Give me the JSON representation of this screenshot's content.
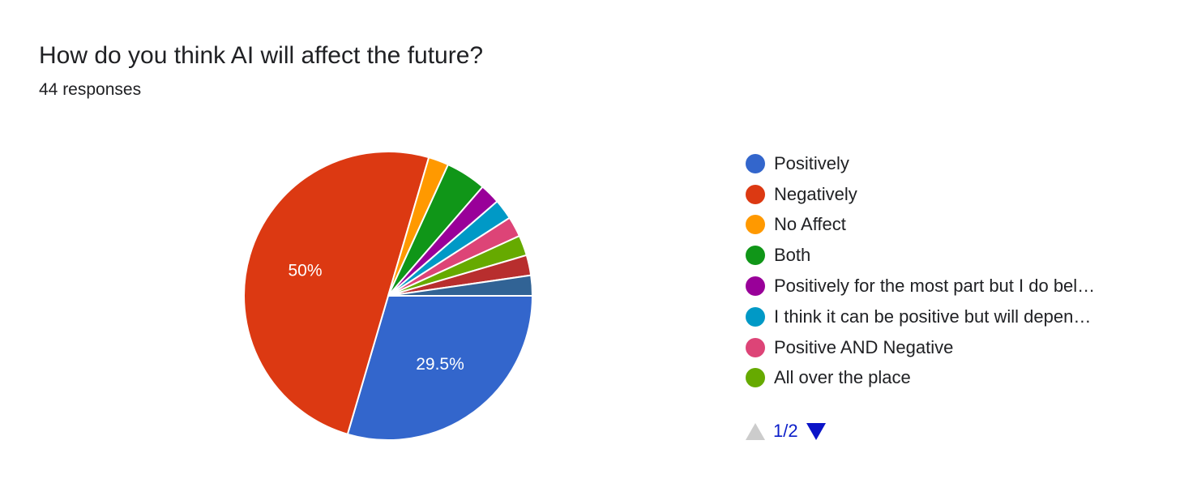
{
  "header": {
    "title": "How do you think AI will affect the future?",
    "responses": "44 responses"
  },
  "chart_data": {
    "type": "pie",
    "slices": [
      {
        "label": "Positively",
        "value": 13,
        "percent_label": "29.5%",
        "color": "#3366cc"
      },
      {
        "label": "Negatively",
        "value": 22,
        "percent_label": "50%",
        "color": "#dc3912"
      },
      {
        "label": "No Affect",
        "value": 1,
        "percent_label": "",
        "color": "#ff9900"
      },
      {
        "label": "Both",
        "value": 2,
        "percent_label": "",
        "color": "#109618"
      },
      {
        "label": "Positively for the most part but I do bel…",
        "value": 1,
        "percent_label": "",
        "color": "#990099"
      },
      {
        "label": "I think it can be positive but will depen…",
        "value": 1,
        "percent_label": "",
        "color": "#0099c6"
      },
      {
        "label": "Positive AND Negative",
        "value": 1,
        "percent_label": "",
        "color": "#dd4477"
      },
      {
        "label": "All over the place",
        "value": 1,
        "percent_label": "",
        "color": "#66aa00"
      },
      {
        "label": "",
        "value": 1,
        "percent_label": "",
        "color": "#b82e2e"
      },
      {
        "label": "",
        "value": 1,
        "percent_label": "",
        "color": "#316395"
      }
    ],
    "legend_placement": "right"
  },
  "pager": {
    "page_label": "1/2"
  }
}
